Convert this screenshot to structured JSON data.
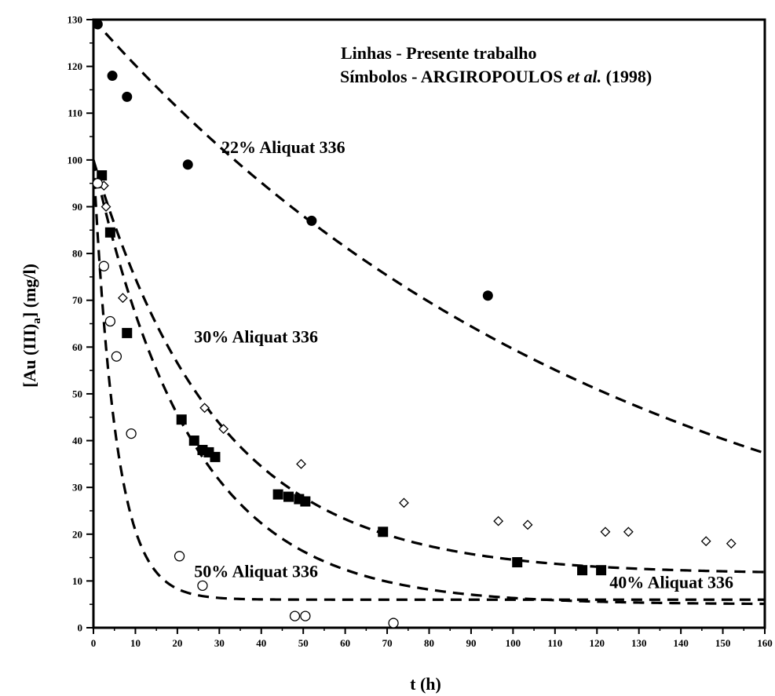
{
  "chart_data": {
    "type": "scatter",
    "xlabel": "t (h)",
    "ylabel_parts": {
      "pre": "[Au (III)",
      "sub": "a",
      "post": "] (mg/l)"
    },
    "xlim": [
      0,
      160
    ],
    "ylim": [
      0,
      130
    ],
    "x_ticks": [
      0,
      10,
      20,
      30,
      40,
      50,
      60,
      70,
      80,
      90,
      100,
      110,
      120,
      130,
      140,
      150,
      160
    ],
    "y_ticks": [
      0,
      10,
      20,
      30,
      40,
      50,
      60,
      70,
      80,
      90,
      100,
      110,
      120,
      130
    ],
    "grid": false,
    "legend_text": {
      "line1": "Linhas - Presente trabalho",
      "line2_pre": "Símbolos - ARGIROPOULOS ",
      "line2_em": "et al.",
      "line2_post": " (1998)"
    },
    "series": [
      {
        "name": "22% Aliquat 336",
        "marker": "filled-circle",
        "points": [
          [
            1,
            129
          ],
          [
            4.5,
            118
          ],
          [
            8,
            113.5
          ],
          [
            22.5,
            99
          ],
          [
            52,
            87
          ],
          [
            94,
            71
          ]
        ],
        "curve": {
          "kind": "exp",
          "C": 130,
          "k": 0.0078,
          "offset": 0
        }
      },
      {
        "name": "30% Aliquat 336",
        "marker": "open-diamond",
        "points": [
          [
            2.5,
            94.5
          ],
          [
            3,
            90
          ],
          [
            7,
            70.5
          ],
          [
            26.5,
            47
          ],
          [
            31,
            42.5
          ],
          [
            49.5,
            35
          ],
          [
            74,
            26.7
          ],
          [
            96.5,
            22.8
          ],
          [
            103.5,
            22
          ],
          [
            122,
            20.5
          ],
          [
            127.5,
            20.5
          ],
          [
            146,
            18.5
          ],
          [
            152,
            18
          ]
        ],
        "curve": {
          "kind": "exp",
          "C": 88.5,
          "k": 0.0337,
          "offset": 11.5
        }
      },
      {
        "name": "40% Aliquat 336",
        "marker": "filled-square",
        "points": [
          [
            2,
            96.7
          ],
          [
            4,
            84.5
          ],
          [
            8,
            63
          ],
          [
            21,
            44.5
          ],
          [
            24,
            40
          ],
          [
            26,
            38
          ],
          [
            27.5,
            37.5
          ],
          [
            29,
            36.5
          ],
          [
            44,
            28.5
          ],
          [
            46.5,
            28
          ],
          [
            49,
            27.5
          ],
          [
            50.5,
            27
          ],
          [
            69,
            20.5
          ],
          [
            101,
            14
          ],
          [
            116.5,
            12.3
          ],
          [
            121,
            12.3
          ]
        ],
        "curve": {
          "kind": "exp",
          "C": 95,
          "k": 0.0425,
          "offset": 5
        }
      },
      {
        "name": "50% Aliquat 336",
        "marker": "open-circle",
        "points": [
          [
            1,
            95
          ],
          [
            2.5,
            77.3
          ],
          [
            4,
            65.5
          ],
          [
            5.5,
            58
          ],
          [
            9,
            41.5
          ],
          [
            20.5,
            15.3
          ],
          [
            26,
            9
          ],
          [
            48,
            2.5
          ],
          [
            50.5,
            2.5
          ],
          [
            71.5,
            1
          ]
        ],
        "curve": {
          "kind": "exp",
          "C": 94,
          "k": 0.185,
          "offset": 6
        }
      }
    ],
    "annotations": [
      {
        "text": "22% Aliquat 336",
        "x": 30.5,
        "y": 101.5
      },
      {
        "text": "30% Aliquat 336",
        "x": 24,
        "y": 61
      },
      {
        "text": "40% Aliquat 336",
        "x": 123,
        "y": 8.5
      },
      {
        "text": "50% Aliquat 336",
        "x": 24,
        "y": 10.8
      }
    ]
  }
}
